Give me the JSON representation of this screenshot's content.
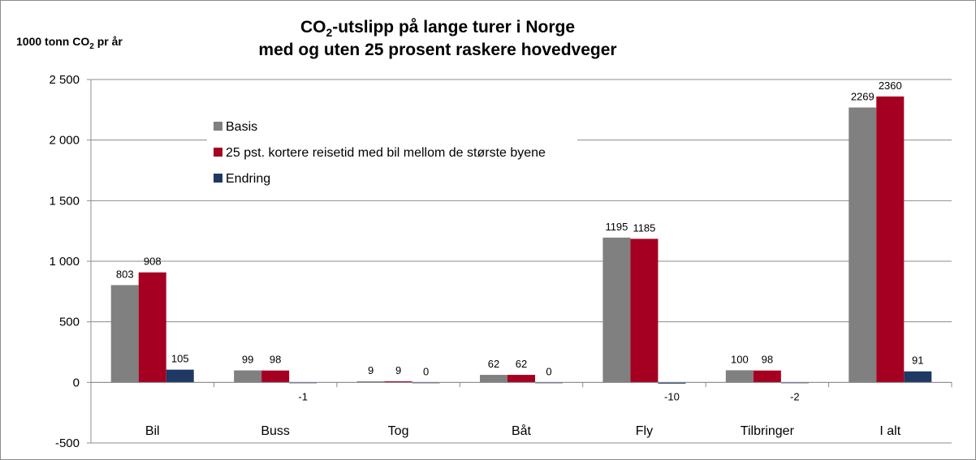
{
  "chart_data": {
    "type": "bar",
    "title_lines": [
      {
        "pre": "CO",
        "sub": "2",
        "post": "-utslipp på lange turer i Norge"
      },
      {
        "pre": "med og uten 25 prosent raskere hovedveger",
        "sub": "",
        "post": ""
      }
    ],
    "ylabel": {
      "pre": "1000 tonn CO",
      "sub": "2",
      "post": " pr år"
    },
    "xlabel": "",
    "categories": [
      "Bil",
      "Buss",
      "Tog",
      "Båt",
      "Fly",
      "Tilbringer",
      "I alt"
    ],
    "ylim": [
      -500,
      2500
    ],
    "yticks": [
      -500,
      0,
      500,
      1000,
      1500,
      2000,
      2500
    ],
    "ytick_labels": [
      "-500",
      "0",
      "500",
      "1 000",
      "1 500",
      "2 000",
      "2 500"
    ],
    "grid": true,
    "legend_placement": "upper-left inside plot",
    "series": [
      {
        "name": "Basis",
        "color": "#808080",
        "values": [
          803,
          99,
          9,
          62,
          1195,
          100,
          2269
        ]
      },
      {
        "name": "25 pst. kortere reisetid med bil mellom de største byene",
        "color": "#A50021",
        "values": [
          908,
          98,
          9,
          62,
          1185,
          98,
          2360
        ]
      },
      {
        "name": "Endring",
        "color": "#1F3864",
        "values": [
          105,
          -1,
          0,
          0,
          -10,
          -2,
          91
        ]
      }
    ]
  }
}
